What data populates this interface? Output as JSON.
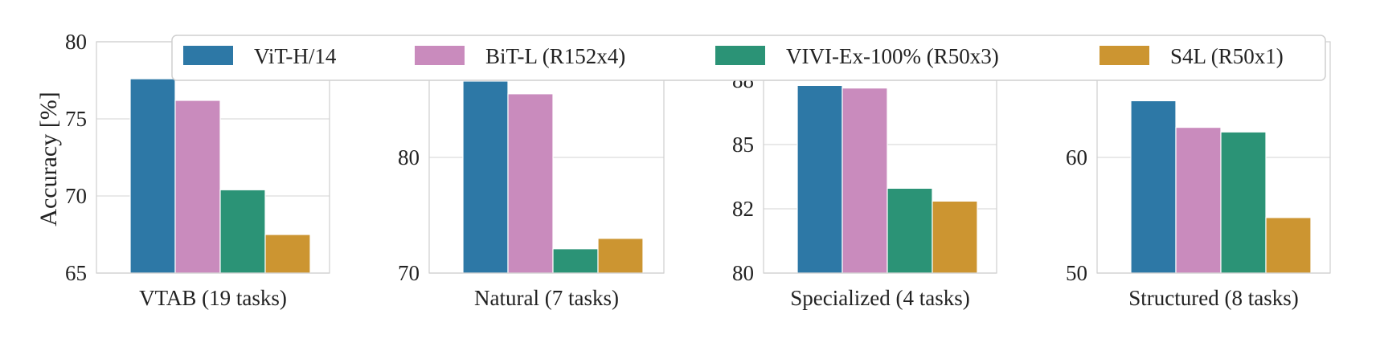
{
  "chart_data": {
    "type": "bar",
    "ylabel": "Accuracy [%]",
    "legend_position": "top",
    "grid": true,
    "series": [
      {
        "name": "ViT-H/14",
        "color": "#2d78a6"
      },
      {
        "name": "BiT-L (R152x4)",
        "color": "#c98bbd"
      },
      {
        "name": "VIVI-Ex-100% (R50x3)",
        "color": "#2b9376"
      },
      {
        "name": "S4L (R50x1)",
        "color": "#cc9531"
      }
    ],
    "panels": [
      {
        "xlabel": "VTAB (19 tasks)",
        "ylim": [
          65,
          80
        ],
        "yticks": [
          65,
          70,
          75,
          80
        ],
        "ytick_labels": [
          "65",
          "70",
          "75",
          "80"
        ],
        "values": [
          77.6,
          76.2,
          70.4,
          67.5
        ]
      },
      {
        "xlabel": "Natural (7 tasks)",
        "ylim": [
          70,
          90
        ],
        "yticks": [
          70,
          80
        ],
        "ytick_labels": [
          "70",
          "80"
        ],
        "values": [
          86.6,
          85.5,
          72.1,
          73.0
        ]
      },
      {
        "xlabel": "Specialized (4 tasks)",
        "ylim": [
          80,
          89
        ],
        "yticks": [
          80,
          82.5,
          85,
          87.5
        ],
        "ytick_labels": [
          "80",
          "82",
          "85",
          "88"
        ],
        "values": [
          87.3,
          87.2,
          83.3,
          82.8
        ]
      },
      {
        "xlabel": "Structured (8 tasks)",
        "ylim": [
          50,
          70
        ],
        "yticks": [
          50,
          60
        ],
        "ytick_labels": [
          "50",
          "60"
        ],
        "values": [
          64.9,
          62.6,
          62.2,
          54.8
        ]
      }
    ]
  }
}
